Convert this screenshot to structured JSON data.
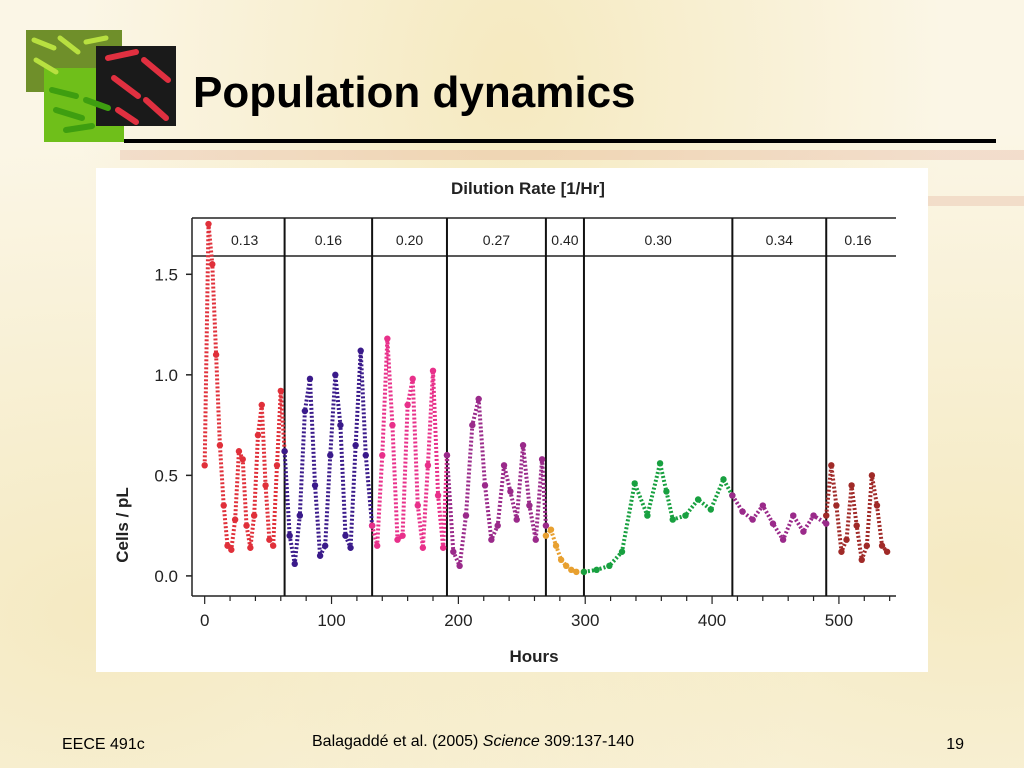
{
  "slide": {
    "title": "Population dynamics",
    "footer_left": "EECE 491c",
    "citation": {
      "authors": "Balagaddé et al. (2005) ",
      "journal": "Science",
      "pages": " 309:137-140"
    },
    "page_number": "19"
  },
  "colors": {
    "title_rule": "#000000",
    "series": [
      "#e0303a",
      "#3a1a8a",
      "#e8308a",
      "#9a2a8a",
      "#e8a030",
      "#18a040",
      "#9a2a8a",
      "#a02a28"
    ]
  },
  "chart_data": {
    "type": "scatter",
    "title": "Dilution Rate [1/Hr]",
    "xlabel": "Hours",
    "ylabel": "Cells / pL",
    "xlim": [
      -10,
      545
    ],
    "ylim": [
      -0.1,
      1.78
    ],
    "xticks": [
      0,
      100,
      200,
      300,
      400,
      500
    ],
    "yticks": [
      0.0,
      0.5,
      1.0,
      1.5
    ],
    "ytick_labels": [
      "0.0",
      "0.5",
      "1.0",
      "1.5"
    ],
    "phase_boundaries": [
      63,
      132,
      191,
      269,
      299,
      416,
      490
    ],
    "phases": [
      {
        "rate": "0.13",
        "start": 0,
        "end": 63
      },
      {
        "rate": "0.16",
        "start": 63,
        "end": 132
      },
      {
        "rate": "0.20",
        "start": 132,
        "end": 191
      },
      {
        "rate": "0.27",
        "start": 191,
        "end": 269
      },
      {
        "rate": "0.40",
        "start": 269,
        "end": 299
      },
      {
        "rate": "0.30",
        "start": 299,
        "end": 416
      },
      {
        "rate": "0.34",
        "start": 416,
        "end": 490
      },
      {
        "rate": "0.16",
        "start": 490,
        "end": 540
      }
    ],
    "series": [
      {
        "x": [
          0,
          3,
          6,
          9,
          12,
          15,
          18,
          21,
          24,
          27,
          30,
          33,
          36,
          39,
          42,
          45,
          48,
          51,
          54,
          57,
          60,
          63
        ],
        "y": [
          0.55,
          1.75,
          1.55,
          1.1,
          0.65,
          0.35,
          0.15,
          0.13,
          0.28,
          0.62,
          0.58,
          0.25,
          0.14,
          0.3,
          0.7,
          0.85,
          0.45,
          0.18,
          0.15,
          0.55,
          0.92,
          0.62
        ]
      },
      {
        "x": [
          63,
          67,
          71,
          75,
          79,
          83,
          87,
          91,
          95,
          99,
          103,
          107,
          111,
          115,
          119,
          123,
          127,
          132
        ],
        "y": [
          0.62,
          0.2,
          0.06,
          0.3,
          0.82,
          0.98,
          0.45,
          0.1,
          0.15,
          0.6,
          1.0,
          0.75,
          0.2,
          0.14,
          0.65,
          1.12,
          0.6,
          0.25
        ]
      },
      {
        "x": [
          132,
          136,
          140,
          144,
          148,
          152,
          156,
          160,
          164,
          168,
          172,
          176,
          180,
          184,
          188,
          191
        ],
        "y": [
          0.25,
          0.15,
          0.6,
          1.18,
          0.75,
          0.18,
          0.2,
          0.85,
          0.98,
          0.35,
          0.14,
          0.55,
          1.02,
          0.4,
          0.14,
          0.6
        ]
      },
      {
        "x": [
          191,
          196,
          201,
          206,
          211,
          216,
          221,
          226,
          231,
          236,
          241,
          246,
          251,
          256,
          261,
          266,
          269
        ],
        "y": [
          0.6,
          0.12,
          0.05,
          0.3,
          0.75,
          0.88,
          0.45,
          0.18,
          0.25,
          0.55,
          0.42,
          0.28,
          0.65,
          0.35,
          0.18,
          0.58,
          0.25
        ]
      },
      {
        "x": [
          269,
          273,
          277,
          281,
          285,
          289,
          293,
          299
        ],
        "y": [
          0.2,
          0.23,
          0.15,
          0.08,
          0.05,
          0.03,
          0.02,
          0.02
        ]
      },
      {
        "x": [
          299,
          309,
          319,
          329,
          339,
          349,
          359,
          364,
          369,
          379,
          389,
          399,
          409,
          416
        ],
        "y": [
          0.02,
          0.03,
          0.05,
          0.12,
          0.46,
          0.3,
          0.56,
          0.42,
          0.28,
          0.3,
          0.38,
          0.33,
          0.48,
          0.4
        ]
      },
      {
        "x": [
          416,
          424,
          432,
          440,
          448,
          456,
          464,
          472,
          480,
          490
        ],
        "y": [
          0.4,
          0.32,
          0.28,
          0.35,
          0.26,
          0.18,
          0.3,
          0.22,
          0.3,
          0.26
        ]
      },
      {
        "x": [
          490,
          494,
          498,
          502,
          506,
          510,
          514,
          518,
          522,
          526,
          530,
          534,
          538
        ],
        "y": [
          0.3,
          0.55,
          0.35,
          0.12,
          0.18,
          0.45,
          0.25,
          0.08,
          0.15,
          0.5,
          0.35,
          0.15,
          0.12
        ]
      }
    ]
  }
}
